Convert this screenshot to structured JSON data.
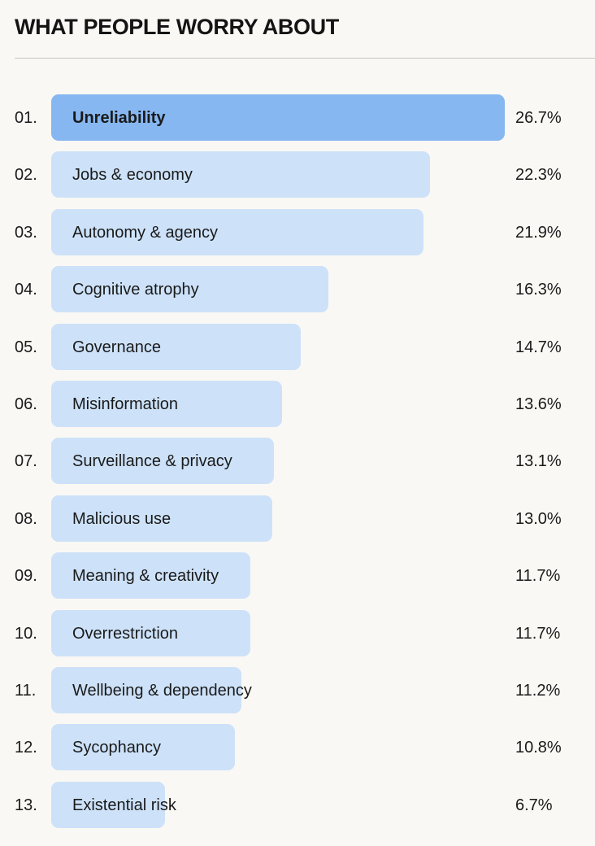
{
  "title": "WHAT PEOPLE WORRY ABOUT",
  "chart_data": {
    "type": "bar",
    "orientation": "horizontal",
    "title": "WHAT PEOPLE WORRY ABOUT",
    "unit": "%",
    "xlim": [
      0,
      26.7
    ],
    "highlight_color": "#86b7f0",
    "bar_color": "#cde2f9",
    "bars": [
      {
        "rank": "01.",
        "label": "Unreliability",
        "value": 26.7,
        "value_label": "26.7%"
      },
      {
        "rank": "02.",
        "label": "Jobs & economy",
        "value": 22.3,
        "value_label": "22.3%"
      },
      {
        "rank": "03.",
        "label": "Autonomy & agency",
        "value": 21.9,
        "value_label": "21.9%"
      },
      {
        "rank": "04.",
        "label": "Cognitive atrophy",
        "value": 16.3,
        "value_label": "16.3%"
      },
      {
        "rank": "05.",
        "label": "Governance",
        "value": 14.7,
        "value_label": "14.7%"
      },
      {
        "rank": "06.",
        "label": "Misinformation",
        "value": 13.6,
        "value_label": "13.6%"
      },
      {
        "rank": "07.",
        "label": "Surveillance & privacy",
        "value": 13.1,
        "value_label": "13.1%"
      },
      {
        "rank": "08.",
        "label": "Malicious use",
        "value": 13.0,
        "value_label": "13.0%"
      },
      {
        "rank": "09.",
        "label": "Meaning & creativity",
        "value": 11.7,
        "value_label": "11.7%"
      },
      {
        "rank": "10.",
        "label": "Overrestriction",
        "value": 11.7,
        "value_label": "11.7%"
      },
      {
        "rank": "11.",
        "label": "Wellbeing & dependency",
        "value": 11.2,
        "value_label": "11.2%"
      },
      {
        "rank": "12.",
        "label": "Sycophancy",
        "value": 10.8,
        "value_label": "10.8%"
      },
      {
        "rank": "13.",
        "label": "Existential risk",
        "value": 6.7,
        "value_label": "6.7%"
      }
    ]
  }
}
